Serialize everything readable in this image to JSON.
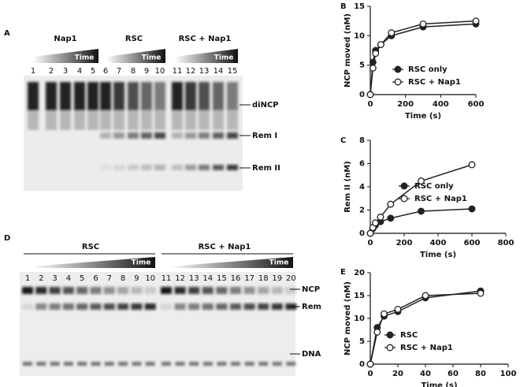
{
  "panel_a": {
    "label": "A",
    "groups": [
      {
        "name": "Nap1",
        "time": "Time"
      },
      {
        "name": "RSC",
        "time": "Time"
      },
      {
        "name": "RSC + Nap1",
        "time": "Time"
      }
    ],
    "lanes": [
      "1",
      "2",
      "3",
      "4",
      "5",
      "6",
      "7",
      "8",
      "9",
      "10",
      "11",
      "12",
      "13",
      "14",
      "15"
    ],
    "bands": [
      "diNCP",
      "Rem I",
      "Rem II"
    ]
  },
  "panel_d": {
    "label": "D",
    "groups": [
      {
        "name": "RSC",
        "time": "Time"
      },
      {
        "name": "RSC + Nap1",
        "time": "Time"
      }
    ],
    "lanes": [
      "1",
      "2",
      "3",
      "4",
      "5",
      "6",
      "7",
      "8",
      "9",
      "10",
      "11",
      "12",
      "13",
      "14",
      "15",
      "16",
      "17",
      "18",
      "19",
      "20"
    ],
    "bands": [
      "NCP",
      "Rem",
      "DNA"
    ]
  },
  "chart_data": [
    {
      "type": "line",
      "panel": "B",
      "xlabel": "Time (s)",
      "ylabel": "NCP moved (nM)",
      "x": [
        0,
        15,
        30,
        60,
        120,
        300,
        600
      ],
      "series": [
        {
          "name": "RSC only",
          "color": "#222222",
          "marker": "filled",
          "values": [
            0,
            5.5,
            7.5,
            8.5,
            10,
            11.5,
            12
          ]
        },
        {
          "name": "RSC + Nap1",
          "color": "#222222",
          "marker": "open",
          "values": [
            0,
            4.5,
            7,
            8.5,
            10.5,
            12,
            12.5
          ]
        }
      ],
      "xlim": [
        0,
        600
      ],
      "xticks": [
        0,
        200,
        400,
        600
      ],
      "ylim": [
        0,
        15
      ],
      "yticks": [
        0,
        5,
        10,
        15
      ]
    },
    {
      "type": "line",
      "panel": "C",
      "xlabel": "Time (s)",
      "ylabel": "Rem II (nM)",
      "x": [
        0,
        15,
        30,
        60,
        120,
        300,
        600
      ],
      "series": [
        {
          "name": "RSC only",
          "color": "#222222",
          "marker": "filled",
          "values": [
            0,
            0.4,
            0.7,
            1.0,
            1.3,
            1.9,
            2.1
          ]
        },
        {
          "name": "RSC + Nap1",
          "color": "#222222",
          "marker": "open",
          "values": [
            0,
            0.5,
            0.9,
            1.4,
            2.5,
            4.5,
            5.9
          ]
        }
      ],
      "xlim": [
        0,
        800
      ],
      "xticks": [
        0,
        200,
        400,
        600,
        800
      ],
      "ylim": [
        0,
        8
      ],
      "yticks": [
        0,
        2,
        4,
        6,
        8
      ]
    },
    {
      "type": "line",
      "panel": "E",
      "xlabel": "Time (s)",
      "ylabel": "NCP moved (nM)",
      "x": [
        0,
        5,
        10,
        20,
        40,
        80
      ],
      "series": [
        {
          "name": "RSC",
          "color": "#222222",
          "marker": "filled",
          "values": [
            0,
            8,
            10.5,
            11.5,
            14.5,
            16
          ]
        },
        {
          "name": "RSC + Nap1",
          "color": "#222222",
          "marker": "open",
          "values": [
            0,
            7,
            11,
            12,
            15,
            15.5
          ]
        }
      ],
      "xlim": [
        0,
        100
      ],
      "xticks": [
        0,
        20,
        40,
        60,
        80,
        100
      ],
      "ylim": [
        0,
        20
      ],
      "yticks": [
        0,
        5,
        10,
        15,
        20
      ]
    }
  ]
}
